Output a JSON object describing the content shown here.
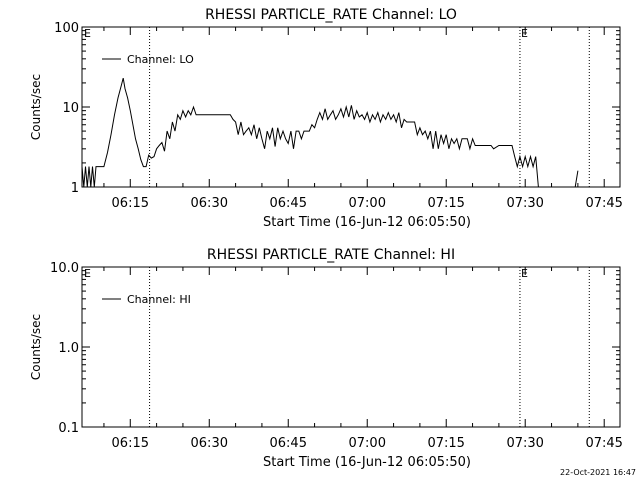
{
  "footer_timestamp": "22-Oct-2021 16:47",
  "chart_data": [
    {
      "type": "line",
      "title": "RHESSI PARTICLE_RATE Channel: LO",
      "xlabel": "Start Time (16-Jun-12 06:05:50)",
      "ylabel": "Counts/sec",
      "yscale": "log",
      "ylim": [
        1,
        100
      ],
      "xlim": [
        "06:05:50",
        "07:48:00"
      ],
      "x_ticks": [
        "06:15",
        "06:30",
        "06:45",
        "07:00",
        "07:15",
        "07:30",
        "07:45"
      ],
      "y_ticks": [
        "1",
        "10",
        "100"
      ],
      "legend": {
        "entries": [
          "Channel: LO"
        ],
        "position": "top-left"
      },
      "markers": [
        {
          "time": "06:18:40",
          "label": ""
        },
        {
          "time": "07:29:00",
          "label": "E"
        },
        {
          "time": "07:42:10",
          "label": ""
        }
      ],
      "corner_label": "E",
      "series": [
        {
          "name": "Channel: LO",
          "points": [
            [
              "06:05:50",
              1.8
            ],
            [
              "06:06:10",
              1.0
            ],
            [
              "06:06:30",
              1.8
            ],
            [
              "06:06:50",
              1.0
            ],
            [
              "06:07:10",
              1.8
            ],
            [
              "06:07:30",
              1.0
            ],
            [
              "06:07:50",
              1.8
            ],
            [
              "06:08:10",
              1.0
            ],
            [
              "06:08:30",
              1.8
            ],
            [
              "06:09:00",
              1.8
            ],
            [
              "06:09:30",
              1.8
            ],
            [
              "06:10:00",
              1.8
            ],
            [
              "06:10:40",
              2.7
            ],
            [
              "06:11:20",
              4.5
            ],
            [
              "06:12:00",
              8.0
            ],
            [
              "06:12:40",
              13.0
            ],
            [
              "06:13:20",
              19.0
            ],
            [
              "06:13:40",
              23.0
            ],
            [
              "06:14:00",
              17.0
            ],
            [
              "06:14:30",
              13.0
            ],
            [
              "06:15:00",
              9.0
            ],
            [
              "06:15:30",
              6.0
            ],
            [
              "06:16:00",
              4.0
            ],
            [
              "06:16:30",
              3.0
            ],
            [
              "06:17:00",
              2.2
            ],
            [
              "06:17:30",
              1.8
            ],
            [
              "06:18:00",
              1.8
            ],
            [
              "06:18:30",
              2.5
            ],
            [
              "06:19:00",
              2.3
            ],
            [
              "06:19:30",
              2.4
            ],
            [
              "06:20:00",
              3.0
            ],
            [
              "06:20:30",
              3.3
            ],
            [
              "06:21:00",
              3.6
            ],
            [
              "06:21:30",
              2.8
            ],
            [
              "06:22:00",
              5.0
            ],
            [
              "06:22:30",
              4.0
            ],
            [
              "06:23:00",
              6.5
            ],
            [
              "06:23:30",
              5.0
            ],
            [
              "06:24:00",
              8.0
            ],
            [
              "06:24:30",
              7.0
            ],
            [
              "06:25:00",
              9.0
            ],
            [
              "06:25:30",
              7.5
            ],
            [
              "06:26:00",
              9.0
            ],
            [
              "06:26:30",
              8.0
            ],
            [
              "06:27:00",
              10.0
            ],
            [
              "06:27:30",
              8.0
            ],
            [
              "06:28:00",
              8.0
            ],
            [
              "06:29:00",
              8.0
            ],
            [
              "06:30:00",
              8.0
            ],
            [
              "06:31:00",
              8.0
            ],
            [
              "06:32:00",
              8.0
            ],
            [
              "06:33:00",
              8.0
            ],
            [
              "06:34:00",
              8.0
            ],
            [
              "06:34:30",
              7.0
            ],
            [
              "06:35:00",
              6.5
            ],
            [
              "06:35:30",
              4.5
            ],
            [
              "06:36:00",
              6.5
            ],
            [
              "06:36:30",
              4.5
            ],
            [
              "06:37:00",
              5.0
            ],
            [
              "06:37:30",
              5.5
            ],
            [
              "06:38:00",
              4.5
            ],
            [
              "06:38:30",
              6.0
            ],
            [
              "06:39:00",
              4.0
            ],
            [
              "06:39:30",
              5.5
            ],
            [
              "06:40:00",
              4.0
            ],
            [
              "06:40:30",
              3.0
            ],
            [
              "06:41:00",
              5.0
            ],
            [
              "06:41:30",
              4.0
            ],
            [
              "06:42:00",
              5.5
            ],
            [
              "06:42:30",
              3.2
            ],
            [
              "06:43:00",
              5.5
            ],
            [
              "06:43:30",
              4.0
            ],
            [
              "06:44:00",
              5.0
            ],
            [
              "06:44:30",
              4.0
            ],
            [
              "06:45:00",
              3.5
            ],
            [
              "06:45:30",
              5.0
            ],
            [
              "06:46:00",
              3.0
            ],
            [
              "06:46:30",
              5.0
            ],
            [
              "06:47:00",
              5.0
            ],
            [
              "06:47:30",
              4.0
            ],
            [
              "06:48:00",
              5.0
            ],
            [
              "06:48:30",
              5.0
            ],
            [
              "06:49:00",
              5.0
            ],
            [
              "06:49:30",
              6.0
            ],
            [
              "06:50:00",
              5.5
            ],
            [
              "06:50:30",
              7.0
            ],
            [
              "06:51:00",
              8.5
            ],
            [
              "06:51:30",
              7.0
            ],
            [
              "06:52:00",
              9.5
            ],
            [
              "06:52:30",
              7.0
            ],
            [
              "06:53:00",
              8.0
            ],
            [
              "06:53:30",
              9.0
            ],
            [
              "06:54:00",
              7.0
            ],
            [
              "06:54:30",
              8.0
            ],
            [
              "06:55:00",
              9.5
            ],
            [
              "06:55:30",
              7.5
            ],
            [
              "06:56:00",
              10.0
            ],
            [
              "06:56:30",
              7.5
            ],
            [
              "06:57:00",
              10.5
            ],
            [
              "06:57:30",
              7.0
            ],
            [
              "06:58:00",
              9.0
            ],
            [
              "06:58:30",
              7.5
            ],
            [
              "06:59:00",
              8.0
            ],
            [
              "06:59:30",
              7.0
            ],
            [
              "07:00:00",
              8.5
            ],
            [
              "07:00:30",
              6.5
            ],
            [
              "07:01:00",
              8.0
            ],
            [
              "07:01:30",
              7.0
            ],
            [
              "07:02:00",
              8.5
            ],
            [
              "07:02:30",
              6.5
            ],
            [
              "07:03:00",
              8.0
            ],
            [
              "07:03:30",
              7.0
            ],
            [
              "07:04:00",
              8.5
            ],
            [
              "07:04:30",
              7.0
            ],
            [
              "07:05:00",
              8.0
            ],
            [
              "07:05:30",
              6.5
            ],
            [
              "07:06:00",
              8.5
            ],
            [
              "07:06:30",
              5.5
            ],
            [
              "07:07:00",
              7.0
            ],
            [
              "07:07:30",
              6.5
            ],
            [
              "07:08:00",
              6.5
            ],
            [
              "07:09:00",
              6.5
            ],
            [
              "07:09:30",
              4.5
            ],
            [
              "07:10:00",
              5.5
            ],
            [
              "07:10:30",
              4.5
            ],
            [
              "07:11:00",
              5.0
            ],
            [
              "07:11:30",
              4.0
            ],
            [
              "07:12:00",
              5.0
            ],
            [
              "07:12:30",
              3.0
            ],
            [
              "07:13:00",
              5.0
            ],
            [
              "07:13:30",
              3.0
            ],
            [
              "07:14:00",
              4.5
            ],
            [
              "07:14:30",
              3.5
            ],
            [
              "07:15:00",
              4.5
            ],
            [
              "07:15:30",
              3.0
            ],
            [
              "07:16:00",
              4.0
            ],
            [
              "07:16:30",
              3.5
            ],
            [
              "07:17:00",
              4.0
            ],
            [
              "07:17:30",
              3.0
            ],
            [
              "07:18:00",
              4.0
            ],
            [
              "07:19:00",
              4.0
            ],
            [
              "07:19:30",
              3.0
            ],
            [
              "07:20:00",
              4.0
            ],
            [
              "07:20:30",
              3.3
            ],
            [
              "07:21:00",
              3.3
            ],
            [
              "07:21:30",
              3.3
            ],
            [
              "07:22:00",
              3.3
            ],
            [
              "07:22:30",
              3.3
            ],
            [
              "07:23:00",
              3.3
            ],
            [
              "07:23:30",
              3.3
            ],
            [
              "07:24:00",
              3.0
            ],
            [
              "07:25:00",
              3.3
            ],
            [
              "07:25:30",
              3.3
            ],
            [
              "07:26:00",
              3.3
            ],
            [
              "07:26:30",
              3.3
            ],
            [
              "07:27:00",
              3.3
            ],
            [
              "07:27:30",
              3.3
            ],
            [
              "07:28:00",
              2.4
            ],
            [
              "07:28:30",
              1.8
            ],
            [
              "07:29:00",
              2.4
            ],
            [
              "07:29:30",
              1.8
            ],
            [
              "07:30:00",
              2.4
            ],
            [
              "07:30:30",
              1.8
            ],
            [
              "07:31:00",
              2.4
            ],
            [
              "07:31:30",
              1.8
            ],
            [
              "07:32:00",
              2.4
            ],
            [
              "07:32:30",
              1.0
            ],
            null,
            [
              "07:39:30",
              1.0
            ],
            [
              "07:40:00",
              1.6
            ]
          ]
        }
      ]
    },
    {
      "type": "line",
      "title": "RHESSI PARTICLE_RATE Channel: HI",
      "xlabel": "Start Time (16-Jun-12 06:05:50)",
      "ylabel": "Counts/sec",
      "yscale": "log",
      "ylim": [
        0.1,
        10
      ],
      "xlim": [
        "06:05:50",
        "07:48:00"
      ],
      "x_ticks": [
        "06:15",
        "06:30",
        "06:45",
        "07:00",
        "07:15",
        "07:30",
        "07:45"
      ],
      "y_ticks": [
        "0.1",
        "1.0",
        "10.0"
      ],
      "legend": {
        "entries": [
          "Channel: HI"
        ],
        "position": "top-left"
      },
      "markers": [
        {
          "time": "06:18:40",
          "label": ""
        },
        {
          "time": "07:29:00",
          "label": "E"
        },
        {
          "time": "07:42:10",
          "label": ""
        }
      ],
      "corner_label": "E",
      "series": [
        {
          "name": "Channel: HI",
          "points": []
        }
      ]
    }
  ]
}
